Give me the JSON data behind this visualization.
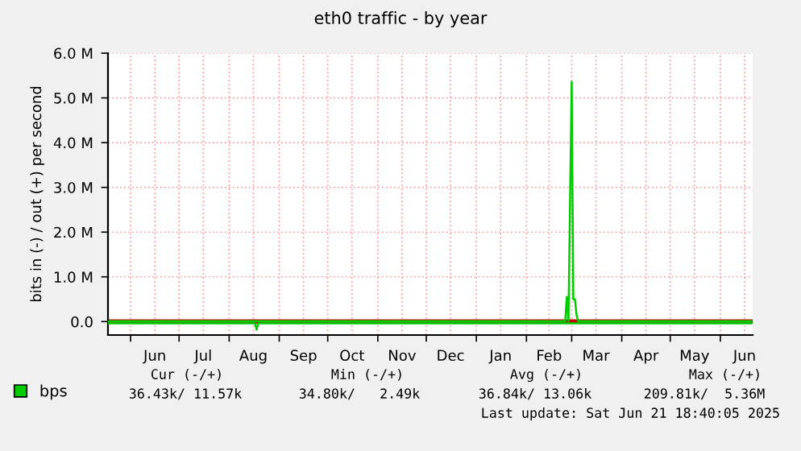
{
  "chart_data": {
    "type": "line",
    "title": "eth0 traffic - by year",
    "ylabel": "bits in (-) / out (+) per second",
    "series": [
      {
        "name": "bps",
        "color": "#00cc00",
        "x": [
          "2024-05-18",
          "2025-02-25",
          "2025-02-26",
          "2025-02-27",
          "2025-03-01",
          "2025-03-02",
          "2025-03-03",
          "2025-03-04",
          "2025-03-05",
          "2025-06-20"
        ],
        "values": [
          0.01,
          0.01,
          0.55,
          0.01,
          5.36,
          0.5,
          0.5,
          0.15,
          0.01,
          0.01
        ]
      },
      {
        "color": "#00cc00",
        "x": [
          "2024-05-18",
          "2024-08-17",
          "2024-08-18",
          "2024-08-19",
          "2025-06-20"
        ],
        "values": [
          -0.04,
          -0.04,
          -0.18,
          -0.04,
          -0.04
        ]
      }
    ],
    "xlim": [
      "2024-05-18",
      "2025-06-21"
    ],
    "xticks": [
      {
        "value": "2024-06-01",
        "label": null
      },
      {
        "value": "2024-06-16",
        "label": "Jun"
      },
      {
        "value": "2024-07-01",
        "label": null
      },
      {
        "value": "2024-07-16",
        "label": "Jul"
      },
      {
        "value": "2024-08-01",
        "label": null
      },
      {
        "value": "2024-08-16",
        "label": "Aug"
      },
      {
        "value": "2024-09-01",
        "label": null
      },
      {
        "value": "2024-09-16",
        "label": "Sep"
      },
      {
        "value": "2024-10-01",
        "label": null
      },
      {
        "value": "2024-10-16",
        "label": "Oct"
      },
      {
        "value": "2024-11-01",
        "label": null
      },
      {
        "value": "2024-11-16",
        "label": "Nov"
      },
      {
        "value": "2024-12-01",
        "label": null
      },
      {
        "value": "2024-12-16",
        "label": "Dec"
      },
      {
        "value": "2025-01-01",
        "label": null
      },
      {
        "value": "2025-01-16",
        "label": "Jan"
      },
      {
        "value": "2025-02-01",
        "label": null
      },
      {
        "value": "2025-02-15",
        "label": "Feb"
      },
      {
        "value": "2025-03-01",
        "label": null
      },
      {
        "value": "2025-03-16",
        "label": "Mar"
      },
      {
        "value": "2025-04-01",
        "label": null
      },
      {
        "value": "2025-04-16",
        "label": "Apr"
      },
      {
        "value": "2025-05-01",
        "label": null
      },
      {
        "value": "2025-05-16",
        "label": "May"
      },
      {
        "value": "2025-06-01",
        "label": null
      },
      {
        "value": "2025-06-16",
        "label": "Jun"
      }
    ],
    "ylim": [
      -0.3,
      6.0
    ],
    "yticks": [
      {
        "value": 0,
        "label": "0.0"
      },
      {
        "value": 1,
        "label": "1.0 M"
      },
      {
        "value": 2,
        "label": "2.0 M"
      },
      {
        "value": 3,
        "label": "3.0 M"
      },
      {
        "value": 4,
        "label": "4.0 M"
      },
      {
        "value": 5,
        "label": "5.0 M"
      },
      {
        "value": 6,
        "label": "6.0 M"
      }
    ],
    "grid": true,
    "legend": "bottom left",
    "ref_lines": [
      {
        "axis": "y",
        "value": 0,
        "color": "#cc0000"
      }
    ],
    "annotations": [
      "Cur (-/+)",
      "Min (-/+)",
      "Avg (-/+)",
      "Max (-/+)",
      "36.43k/ 11.57k",
      "34.80k/   2.49k",
      "36.84k/ 13.06k",
      "209.81k/  5.36M",
      "Last update: Sat Jun 21 18:40:05 2025"
    ]
  }
}
